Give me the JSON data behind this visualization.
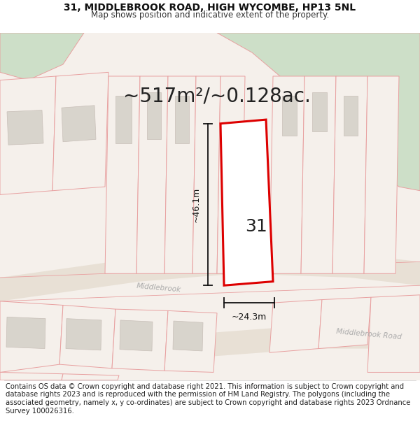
{
  "title_line1": "31, MIDDLEBROOK ROAD, HIGH WYCOMBE, HP13 5NL",
  "title_line2": "Map shows position and indicative extent of the property.",
  "area_text": "~517m²/~0.128ac.",
  "label_height": "~46.1m",
  "label_width": "~24.3m",
  "property_number": "31",
  "road_name1": "Middlebrook",
  "road_name2": "Middlebrook Road",
  "footer_text": "Contains OS data © Crown copyright and database right 2021. This information is subject to Crown copyright and database rights 2023 and is reproduced with the permission of HM Land Registry. The polygons (including the associated geometry, namely x, y co-ordinates) are subject to Crown copyright and database rights 2023 Ordnance Survey 100026316.",
  "bg_map": "#f5f0eb",
  "green_color": "#cddfc8",
  "property_fill": "#ffffff",
  "property_edge": "#dd0000",
  "parcel_fill": "#f5f0eb",
  "parcel_edge": "#e8a0a0",
  "building_fill": "#d8d4cc",
  "building_edge": "#c8bfb8",
  "road_fill": "#e8e0d5",
  "dim_color": "#111111",
  "text_color": "#333333",
  "road_text_color": "#aaaaaa",
  "title_fontsize": 10,
  "subtitle_fontsize": 8.5,
  "area_fontsize": 20,
  "dim_fontsize": 9,
  "number_fontsize": 18,
  "footer_fontsize": 7.2,
  "road_label_fontsize": 7.5
}
